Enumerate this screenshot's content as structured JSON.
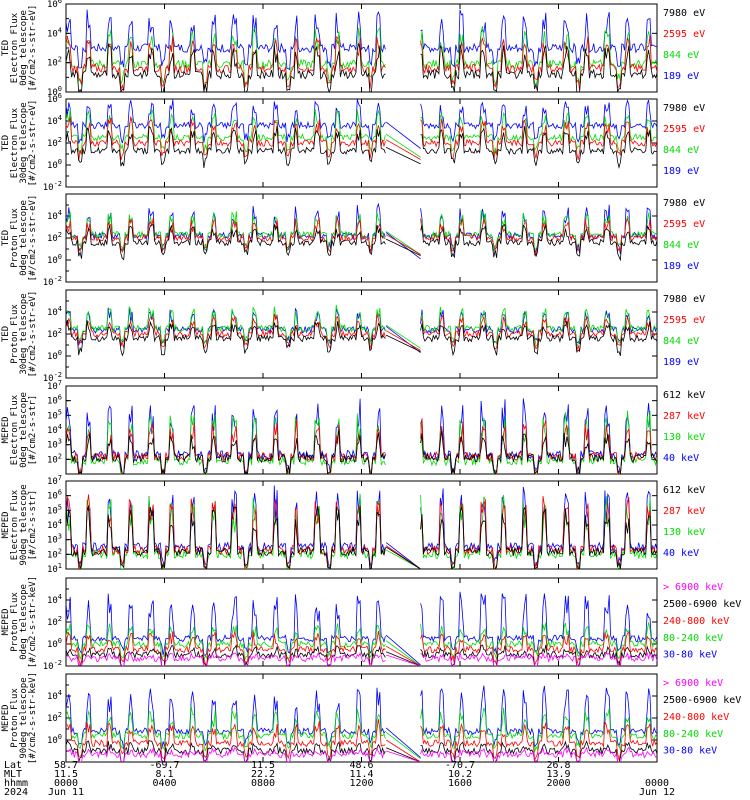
{
  "colors": {
    "blue": "#0000ff",
    "red": "#ff0000",
    "green": "#00dd00",
    "black": "#000000",
    "magenta": "#ff00ff"
  },
  "chart_data": [
    {
      "type": "line",
      "ylabel": [
        "TED",
        "Electron Flux",
        "0deg telescope",
        "[#/cm2-s-str-eV]"
      ],
      "ylog_range": [
        0,
        6
      ],
      "ticks": [
        {
          "exp": 0,
          "text": "10",
          "sup": "0"
        },
        {
          "exp": 2,
          "text": "10",
          "sup": "2"
        },
        {
          "exp": 4,
          "text": "10",
          "sup": "4"
        },
        {
          "exp": 6,
          "text": "10",
          "sup": "6"
        }
      ],
      "series": [
        {
          "name": "7980 eV",
          "color": "#000000",
          "base": 1.2,
          "spike": 1.6
        },
        {
          "name": "2595 eV",
          "color": "#ff0000",
          "base": 1.6,
          "spike": 1.8
        },
        {
          "name": "844 eV",
          "color": "#00dd00",
          "base": 1.9,
          "spike": 2.0
        },
        {
          "name": "189 eV",
          "color": "#0000ff",
          "base": 3.0,
          "spike": 2.0
        }
      ],
      "gap_lines": false
    },
    {
      "type": "line",
      "ylabel": [
        "TED",
        "Electron Flux",
        "30deg telescope",
        "[#/cm2-s-str-eV]"
      ],
      "ylog_range": [
        -2,
        6
      ],
      "ticks": [
        {
          "exp": -2,
          "text": "10",
          "sup": "-2"
        },
        {
          "exp": 0,
          "text": "10",
          "sup": "0"
        },
        {
          "exp": 2,
          "text": "10",
          "sup": "2"
        },
        {
          "exp": 4,
          "text": "10",
          "sup": "4"
        },
        {
          "exp": 6,
          "text": "10",
          "sup": "6"
        }
      ],
      "series": [
        {
          "name": "7980 eV",
          "color": "#000000",
          "base": 1.3,
          "spike": 1.8
        },
        {
          "name": "2595 eV",
          "color": "#ff0000",
          "base": 2.0,
          "spike": 1.8
        },
        {
          "name": "844 eV",
          "color": "#00dd00",
          "base": 2.5,
          "spike": 2.0
        },
        {
          "name": "189 eV",
          "color": "#0000ff",
          "base": 3.6,
          "spike": 1.8
        }
      ],
      "gap_lines": true
    },
    {
      "type": "line",
      "ylabel": [
        "TED",
        "Proton Flux",
        "0deg telescope",
        "[#/cm2-s-str-eV]"
      ],
      "ylog_range": [
        -2,
        6
      ],
      "ticks": [
        {
          "exp": -2,
          "text": "10",
          "sup": "-2"
        },
        {
          "exp": 0,
          "text": "10",
          "sup": "0"
        },
        {
          "exp": 2,
          "text": "10",
          "sup": "2"
        },
        {
          "exp": 4,
          "text": "10",
          "sup": "4"
        }
      ],
      "series": [
        {
          "name": "7980 eV",
          "color": "#000000",
          "base": 1.6,
          "spike": 1.3
        },
        {
          "name": "2595 eV",
          "color": "#ff0000",
          "base": 2.0,
          "spike": 1.4
        },
        {
          "name": "844 eV",
          "color": "#00dd00",
          "base": 2.3,
          "spike": 1.8
        },
        {
          "name": "189 eV",
          "color": "#0000ff",
          "base": 2.2,
          "spike": 2.3
        }
      ],
      "gap_lines": true
    },
    {
      "type": "line",
      "ylabel": [
        "TED",
        "Proton Flux",
        "30deg telescope",
        "[#/cm2-s-str-eV]"
      ],
      "ylog_range": [
        -2,
        6
      ],
      "ticks": [
        {
          "exp": -2,
          "text": "10",
          "sup": "-2"
        },
        {
          "exp": 0,
          "text": "10",
          "sup": "0"
        },
        {
          "exp": 2,
          "text": "10",
          "sup": "2"
        },
        {
          "exp": 4,
          "text": "10",
          "sup": "4"
        }
      ],
      "series": [
        {
          "name": "7980 eV",
          "color": "#000000",
          "base": 1.6,
          "spike": 1.2
        },
        {
          "name": "2595 eV",
          "color": "#ff0000",
          "base": 2.0,
          "spike": 1.3
        },
        {
          "name": "844 eV",
          "color": "#00dd00",
          "base": 2.5,
          "spike": 1.6
        },
        {
          "name": "189 eV",
          "color": "#0000ff",
          "base": 2.4,
          "spike": 1.5
        }
      ],
      "gap_lines": true
    },
    {
      "type": "line",
      "ylabel": [
        "MEPED",
        "Electron Flux",
        "0deg telescope",
        "[#/cm2-s-str]"
      ],
      "ylog_range": [
        1,
        7
      ],
      "ticks": [
        {
          "exp": 2,
          "text": "10",
          "sup": "2"
        },
        {
          "exp": 3,
          "text": "10",
          "sup": "3"
        },
        {
          "exp": 4,
          "text": "10",
          "sup": "4"
        },
        {
          "exp": 5,
          "text": "10",
          "sup": "5"
        },
        {
          "exp": 6,
          "text": "10",
          "sup": "6"
        },
        {
          "exp": 7,
          "text": "10",
          "sup": "7"
        }
      ],
      "series": [
        {
          "name": "612 keV",
          "color": "#000000",
          "base": 2.1,
          "spike": 1.4
        },
        {
          "name": "287 keV",
          "color": "#ff0000",
          "base": 2.2,
          "spike": 2.0
        },
        {
          "name": "130 keV",
          "color": "#00dd00",
          "base": 1.9,
          "spike": 2.8
        },
        {
          "name": "40 keV",
          "color": "#0000ff",
          "base": 2.3,
          "spike": 3.0
        }
      ],
      "gap_lines": false
    },
    {
      "type": "line",
      "ylabel": [
        "MEPED",
        "Electron Flux",
        "90deg telescope",
        "[#/cm2-s-str]"
      ],
      "ylog_range": [
        1,
        7
      ],
      "ticks": [
        {
          "exp": 1,
          "text": "10",
          "sup": "1"
        },
        {
          "exp": 2,
          "text": "10",
          "sup": "2"
        },
        {
          "exp": 3,
          "text": "10",
          "sup": "3"
        },
        {
          "exp": 4,
          "text": "10",
          "sup": "4"
        },
        {
          "exp": 5,
          "text": "10",
          "sup": "5"
        },
        {
          "exp": 6,
          "text": "10",
          "sup": "6"
        },
        {
          "exp": 7,
          "text": "10",
          "sup": "7"
        }
      ],
      "series": [
        {
          "name": "612 keV",
          "color": "#000000",
          "base": 2.2,
          "spike": 2.6
        },
        {
          "name": "287 keV",
          "color": "#ff0000",
          "base": 2.3,
          "spike": 3.0
        },
        {
          "name": "130 keV",
          "color": "#00dd00",
          "base": 2.0,
          "spike": 3.3
        },
        {
          "name": "40 keV",
          "color": "#0000ff",
          "base": 2.5,
          "spike": 3.5
        }
      ],
      "gap_lines": true
    },
    {
      "type": "line",
      "ylabel": [
        "MEPED",
        "Proton Flux",
        "0deg telescope",
        "[#/cm2-s-str-keV]"
      ],
      "ylog_range": [
        -2,
        6
      ],
      "ticks": [
        {
          "exp": -2,
          "text": "10",
          "sup": "-2"
        },
        {
          "exp": 0,
          "text": "10",
          "sup": "0"
        },
        {
          "exp": 2,
          "text": "10",
          "sup": "2"
        },
        {
          "exp": 4,
          "text": "10",
          "sup": "4"
        }
      ],
      "series": [
        {
          "name": "> 6900 keV",
          "color": "#ff00ff",
          "base": -1.3,
          "spike": 0.3
        },
        {
          "name": "2500-6900 keV",
          "color": "#000000",
          "base": -1.0,
          "spike": 0.6
        },
        {
          "name": "240-800 keV",
          "color": "#ff0000",
          "base": -0.5,
          "spike": 1.2
        },
        {
          "name": "80-240 keV",
          "color": "#00dd00",
          "base": 0.0,
          "spike": 1.5
        },
        {
          "name": "30-80 keV",
          "color": "#0000ff",
          "base": 0.5,
          "spike": 3.5
        }
      ],
      "gap_lines": true
    },
    {
      "type": "line",
      "ylabel": [
        "MEPED",
        "Proton Flux",
        "90deg telescope",
        "[#/cm2-s-str-keV]"
      ],
      "ylog_range": [
        -2,
        6
      ],
      "ticks": [
        {
          "exp": 0,
          "text": "10",
          "sup": "0"
        },
        {
          "exp": 2,
          "text": "10",
          "sup": "2"
        },
        {
          "exp": 4,
          "text": "10",
          "sup": "4"
        }
      ],
      "series": [
        {
          "name": "> 6900 keV",
          "color": "#ff00ff",
          "base": -1.3,
          "spike": 0.3
        },
        {
          "name": "2500-6900 keV",
          "color": "#000000",
          "base": -1.0,
          "spike": 0.6
        },
        {
          "name": "240-800 keV",
          "color": "#ff0000",
          "base": -0.3,
          "spike": 1.6
        },
        {
          "name": "80-240 keV",
          "color": "#00dd00",
          "base": 0.4,
          "spike": 2.0
        },
        {
          "name": "30-80 keV",
          "color": "#0000ff",
          "base": 0.8,
          "spike": 3.3
        }
      ],
      "gap_lines": true
    }
  ],
  "x_axis": {
    "row_labels": [
      "Lat",
      "MLT",
      "hhmm",
      "2024"
    ],
    "ticks": [
      {
        "hour": 0,
        "lat": "58.7",
        "mlt": "11.5",
        "hhmm": "0000",
        "date": "Jun 11"
      },
      {
        "hour": 4,
        "lat": "-69.7",
        "mlt": "8.1",
        "hhmm": "0400",
        "date": ""
      },
      {
        "hour": 8,
        "lat": "11.5",
        "mlt": "22.2",
        "hhmm": "0800",
        "date": ""
      },
      {
        "hour": 12,
        "lat": "48.6",
        "mlt": "11.4",
        "hhmm": "1200",
        "date": ""
      },
      {
        "hour": 16,
        "lat": "-70.7",
        "mlt": "10.2",
        "hhmm": "1600",
        "date": ""
      },
      {
        "hour": 20,
        "lat": "26.8",
        "mlt": "13.9",
        "hhmm": "2000",
        "date": ""
      },
      {
        "hour": 24,
        "lat": "",
        "mlt": "",
        "hhmm": "0000",
        "date": "Jun 12"
      }
    ],
    "range_hours": [
      0,
      24
    ],
    "data_gap_hours": [
      13.0,
      14.4
    ]
  }
}
